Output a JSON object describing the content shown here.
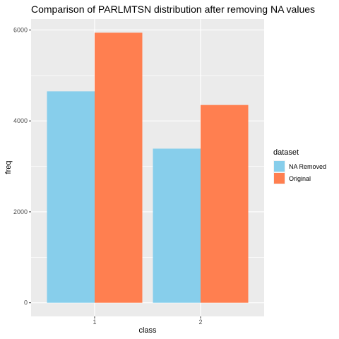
{
  "chart_data": {
    "type": "bar",
    "title": "Comparison of PARLMTSN distribution after removing NA values",
    "xlabel": "class",
    "ylabel": "freq",
    "categories": [
      "1",
      "2"
    ],
    "series": [
      {
        "name": "NA Removed",
        "values": [
          4650,
          3390
        ],
        "color": "#87CEEB"
      },
      {
        "name": "Original",
        "values": [
          5940,
          4350
        ],
        "color": "#FF7F50"
      }
    ],
    "ylim": [
      -300,
      6240
    ],
    "yticks": [
      0,
      2000,
      4000,
      6000
    ],
    "ytick_labels": [
      "0",
      "2000",
      "4000",
      "6000"
    ],
    "grid": true,
    "background": "#EBEBEB",
    "grid_color": "#FFFFFF",
    "legend": {
      "title": "dataset",
      "position": "right"
    }
  }
}
